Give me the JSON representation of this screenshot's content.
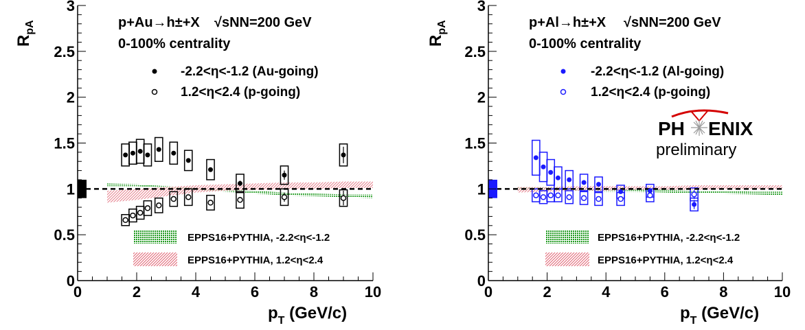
{
  "chart_data": [
    {
      "type": "scatter",
      "panel": "left",
      "xlabel": "p",
      "xlabel_sub": "T",
      "xlabel_unit": " (GeV/c)",
      "ylabel": "R",
      "ylabel_sub": "pA",
      "xlim": [
        0,
        10
      ],
      "ylim": [
        0,
        3
      ],
      "x_ticks": [
        "0",
        "2",
        "4",
        "6",
        "8",
        "10"
      ],
      "y_ticks": [
        "0",
        "0.5",
        "1",
        "1.5",
        "2",
        "2.5",
        "3"
      ],
      "annotations": {
        "system": "p+Au→h±+X",
        "energy": "√sNN=200 GeV",
        "centrality": "0-100% centrality"
      },
      "series": [
        {
          "name": "-2.2<η<-1.2 (Au-going)",
          "marker": "filled",
          "color": "#000000",
          "x": [
            1.62,
            1.87,
            2.12,
            2.37,
            2.75,
            3.25,
            3.75,
            4.5,
            5.5,
            7.0,
            9.0
          ],
          "y": [
            1.37,
            1.39,
            1.41,
            1.37,
            1.43,
            1.39,
            1.31,
            1.21,
            1.06,
            1.15,
            1.37
          ],
          "syst": [
            0.12,
            0.12,
            0.13,
            0.12,
            0.13,
            0.12,
            0.11,
            0.11,
            0.1,
            0.1,
            0.12
          ],
          "stat": [
            0.01,
            0.01,
            0.01,
            0.01,
            0.01,
            0.01,
            0.01,
            0.02,
            0.03,
            0.05,
            0.09
          ]
        },
        {
          "name": "1.2<η<2.4 (p-going)",
          "marker": "open",
          "color": "#000000",
          "x": [
            1.62,
            1.87,
            2.12,
            2.37,
            2.75,
            3.25,
            3.75,
            4.5,
            5.5,
            7.0,
            9.0
          ],
          "y": [
            0.66,
            0.71,
            0.74,
            0.79,
            0.82,
            0.89,
            0.91,
            0.85,
            0.88,
            0.91,
            0.9
          ],
          "syst": [
            0.06,
            0.07,
            0.07,
            0.08,
            0.08,
            0.08,
            0.09,
            0.08,
            0.09,
            0.09,
            0.09
          ],
          "stat": [
            0.01,
            0.01,
            0.01,
            0.01,
            0.01,
            0.01,
            0.01,
            0.02,
            0.03,
            0.05,
            0.08
          ]
        }
      ],
      "bands": [
        {
          "name": "EPPS16+PYTHIA, -2.2<η<-1.2",
          "color": "#1f9a1f",
          "x": [
            1.0,
            2.0,
            3.0,
            4.0,
            5.0,
            6.0,
            7.0,
            8.0,
            9.0,
            10.0
          ],
          "low": [
            1.03,
            1.03,
            1.01,
            0.99,
            0.97,
            0.95,
            0.93,
            0.92,
            0.91,
            0.9
          ],
          "high": [
            1.06,
            1.05,
            1.03,
            1.01,
            0.99,
            0.98,
            0.96,
            0.95,
            0.94,
            0.94
          ]
        },
        {
          "name": "EPPS16+PYTHIA, 1.2<η<2.4",
          "color": "#e06070",
          "x": [
            1.0,
            2.0,
            3.0,
            4.0,
            5.0,
            6.0,
            7.0,
            8.0,
            9.0,
            10.0
          ],
          "low": [
            0.85,
            0.88,
            0.92,
            0.96,
            0.98,
            0.99,
            1.0,
            1.0,
            1.01,
            1.01
          ],
          "high": [
            0.98,
            1.0,
            1.02,
            1.04,
            1.05,
            1.06,
            1.07,
            1.07,
            1.08,
            1.08
          ]
        }
      ],
      "global_box": {
        "value": 1.0,
        "half_height": 0.1,
        "color": "#000000"
      }
    },
    {
      "type": "scatter",
      "panel": "right",
      "xlabel": "p",
      "xlabel_sub": "T",
      "xlabel_unit": " (GeV/c)",
      "ylabel": "R",
      "ylabel_sub": "pA",
      "xlim": [
        0,
        10
      ],
      "ylim": [
        0,
        3
      ],
      "x_ticks": [
        "0",
        "2",
        "4",
        "6",
        "8",
        "10"
      ],
      "y_ticks": [
        "0",
        "0.5",
        "1",
        "1.5",
        "2",
        "2.5",
        "3"
      ],
      "annotations": {
        "system": "p+Al→h±+X",
        "energy": "√sNN=200 GeV",
        "centrality": "0-100% centrality",
        "logo_text": "PH ENIX",
        "logo_subtitle": "preliminary"
      },
      "series": [
        {
          "name": "-2.2<η<-1.2 (Al-going)",
          "marker": "filled",
          "color": "#1a1aff",
          "x": [
            1.62,
            1.87,
            2.12,
            2.37,
            2.75,
            3.25,
            3.75,
            4.5,
            5.5,
            7.0
          ],
          "y": [
            1.34,
            1.24,
            1.18,
            1.12,
            1.1,
            1.07,
            1.05,
            0.97,
            0.98,
            0.83
          ],
          "syst": [
            0.19,
            0.16,
            0.14,
            0.12,
            0.1,
            0.09,
            0.08,
            0.07,
            0.07,
            0.07
          ],
          "stat": [
            0.01,
            0.01,
            0.01,
            0.01,
            0.01,
            0.01,
            0.01,
            0.02,
            0.03,
            0.05
          ]
        },
        {
          "name": "1.2<η<2.4 (p-going)",
          "marker": "open",
          "color": "#1a1aff",
          "x": [
            1.62,
            1.87,
            2.12,
            2.37,
            2.75,
            3.25,
            3.75,
            4.5,
            5.5,
            7.0
          ],
          "y": [
            0.93,
            0.91,
            0.93,
            0.93,
            0.91,
            0.9,
            0.89,
            0.89,
            0.93,
            0.94
          ],
          "syst": [
            0.07,
            0.07,
            0.07,
            0.07,
            0.07,
            0.07,
            0.07,
            0.07,
            0.07,
            0.07
          ],
          "stat": [
            0.01,
            0.01,
            0.01,
            0.01,
            0.01,
            0.01,
            0.01,
            0.02,
            0.03,
            0.05
          ]
        }
      ],
      "bands": [
        {
          "name": "EPPS16+PYTHIA, -2.2<η<-1.2",
          "color": "#1f9a1f",
          "x": [
            1.0,
            2.0,
            3.0,
            4.0,
            5.0,
            6.0,
            7.0,
            8.0,
            9.0,
            10.0
          ],
          "low": [
            0.99,
            0.99,
            0.98,
            0.97,
            0.97,
            0.96,
            0.95,
            0.95,
            0.94,
            0.93
          ],
          "high": [
            1.02,
            1.02,
            1.01,
            1.0,
            1.0,
            0.99,
            0.98,
            0.98,
            0.97,
            0.97
          ]
        },
        {
          "name": "EPPS16+PYTHIA, 1.2<η<2.4",
          "color": "#e06070",
          "x": [
            1.0,
            2.0,
            3.0,
            4.0,
            5.0,
            6.0,
            7.0,
            8.0,
            9.0,
            10.0
          ],
          "low": [
            0.96,
            0.97,
            0.98,
            0.98,
            0.99,
            0.99,
            0.99,
            1.0,
            1.0,
            1.0
          ],
          "high": [
            1.02,
            1.02,
            1.03,
            1.03,
            1.03,
            1.03,
            1.04,
            1.04,
            1.04,
            1.04
          ]
        }
      ],
      "global_box": {
        "value": 1.0,
        "half_height": 0.1,
        "color": "#1a1aff"
      }
    }
  ]
}
